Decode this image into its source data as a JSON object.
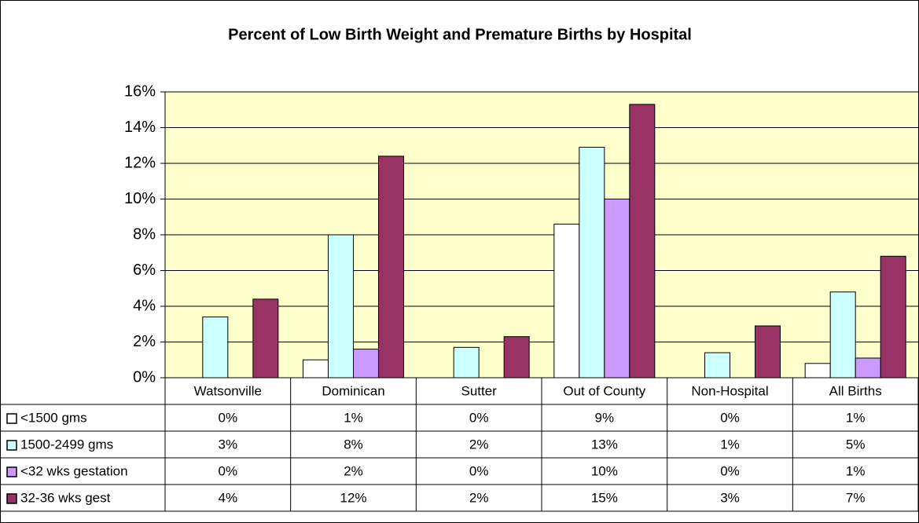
{
  "chart_data": {
    "type": "bar",
    "title": "Percent of Low Birth Weight and Premature Births by Hospital",
    "categories": [
      "Watsonville",
      "Dominican",
      "Sutter",
      "Out of County",
      "Non-Hospital",
      "All Births"
    ],
    "series": [
      {
        "name": "<1500 gms",
        "color": "#ffffff",
        "values": [
          0,
          1.0,
          0,
          8.6,
          0,
          0.8
        ],
        "value_labels": [
          "0%",
          "1%",
          "0%",
          "9%",
          "0%",
          "1%"
        ]
      },
      {
        "name": "1500-2499 gms",
        "color": "#ccffff",
        "values": [
          3.4,
          8.0,
          1.7,
          12.9,
          1.4,
          4.8
        ],
        "value_labels": [
          "3%",
          "8%",
          "2%",
          "13%",
          "1%",
          "5%"
        ]
      },
      {
        "name": "<32 wks gestation",
        "color": "#cc99ff",
        "values": [
          0,
          1.6,
          0,
          10.0,
          0,
          1.1
        ],
        "value_labels": [
          "0%",
          "2%",
          "0%",
          "10%",
          "0%",
          "1%"
        ]
      },
      {
        "name": "32-36 wks gest",
        "color": "#993366",
        "values": [
          4.4,
          12.4,
          2.3,
          15.3,
          2.9,
          6.8
        ],
        "value_labels": [
          "4%",
          "12%",
          "2%",
          "15%",
          "3%",
          "7%"
        ]
      }
    ],
    "ylim": [
      0,
      16
    ],
    "yticks": [
      {
        "value": 0,
        "label": "0%"
      },
      {
        "value": 2,
        "label": "2%"
      },
      {
        "value": 4,
        "label": "4%"
      },
      {
        "value": 6,
        "label": "6%"
      },
      {
        "value": 8,
        "label": "8%"
      },
      {
        "value": 10,
        "label": "10%"
      },
      {
        "value": 12,
        "label": "12%"
      },
      {
        "value": 14,
        "label": "14%"
      },
      {
        "value": 16,
        "label": "16%"
      }
    ],
    "grid": true,
    "plot_background": "#ffffcc"
  }
}
